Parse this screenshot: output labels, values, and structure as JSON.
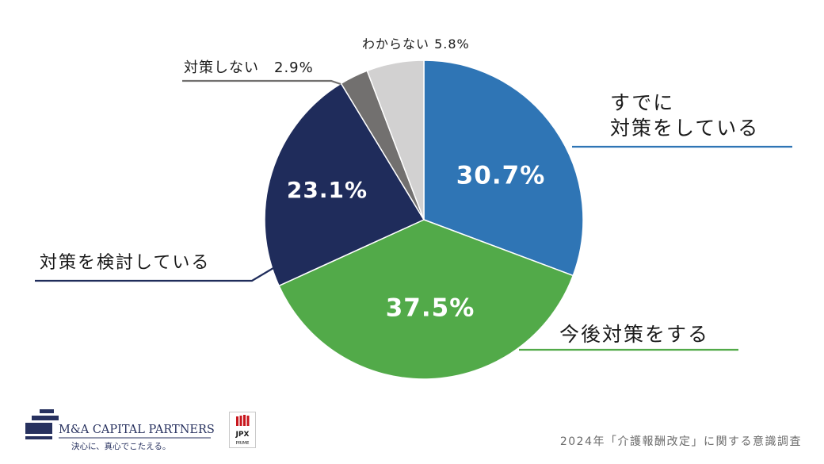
{
  "chart_data": {
    "type": "pie",
    "slices": [
      {
        "label": "すでに\n対策をしている",
        "value": 30.7,
        "value_label": "30.7%",
        "color": "#2f75b5"
      },
      {
        "label": "今後対策をする",
        "value": 37.5,
        "value_label": "37.5%",
        "color": "#52aa49"
      },
      {
        "label": "対策を検討している",
        "value": 23.1,
        "value_label": "23.1%",
        "color": "#1f2c5b"
      },
      {
        "label": "対策しない",
        "value": 2.9,
        "value_label": "2.9%",
        "color": "#72706f"
      },
      {
        "label": "わからない",
        "value": 5.8,
        "value_label": "5.8%",
        "color": "#d2d1d1"
      }
    ],
    "start_angle": "12 o'clock",
    "direction": "clockwise",
    "legend": "none"
  },
  "footer": {
    "company_logo_text": "M&A CAPITAL PARTNERS",
    "company_tagline": "決心に、真心でこたえる。",
    "jpx_logo_text": "JPX",
    "jpx_logo_sub": "PRIME",
    "source_note": "2024年「介護報酬改定」に関する意識調査"
  },
  "colors": {
    "label_text": "#1a1a1a",
    "value_text": "#ffffff",
    "source_text": "#6b6b6b",
    "logo_navy": "#27315f",
    "jpx_red": "#c8161d"
  }
}
